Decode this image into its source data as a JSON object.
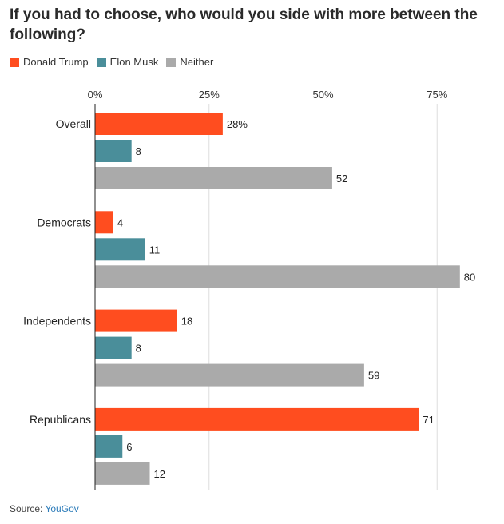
{
  "title": "If you had to choose, who would you side with more between the following?",
  "source": {
    "label": "Source:",
    "name": "YouGov"
  },
  "colors": {
    "trump": "#ff4d1f",
    "musk": "#4a8e9a",
    "neither": "#aaaaaa"
  },
  "chart_data": {
    "type": "bar",
    "orientation": "horizontal",
    "title": "If you had to choose, who would you side with more between the following?",
    "categories": [
      "Overall",
      "Democrats",
      "Independents",
      "Republicans"
    ],
    "series": [
      {
        "name": "Donald Trump",
        "values": [
          28,
          4,
          18,
          71
        ],
        "labels": [
          "28%",
          "4",
          "18",
          "71"
        ]
      },
      {
        "name": "Elon Musk",
        "values": [
          8,
          11,
          8,
          6
        ],
        "labels": [
          "8",
          "11",
          "8",
          "6"
        ]
      },
      {
        "name": "Neither",
        "values": [
          52,
          80,
          59,
          12
        ],
        "labels": [
          "52",
          "80",
          "59",
          "12"
        ]
      }
    ],
    "xlim": [
      0,
      80
    ],
    "ticks": [
      0,
      25,
      50,
      75
    ],
    "tick_labels": [
      "0%",
      "25%",
      "50%",
      "75%"
    ],
    "grid": true,
    "legend_position": "top-left"
  }
}
